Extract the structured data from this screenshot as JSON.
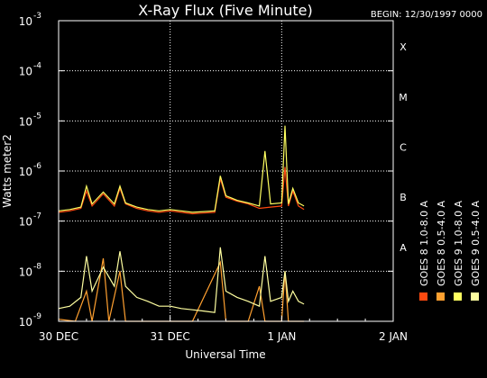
{
  "chart_data": {
    "type": "line",
    "title": "X-Ray Flux (Five Minute)",
    "begin_label": "BEGIN: 12/30/1997 0000",
    "xlabel": "Universal Time",
    "ylabel": "Watts meter2",
    "y_scale": "log",
    "ylim": [
      1e-09,
      0.001
    ],
    "xlim": [
      0,
      3
    ],
    "x_ticks": [
      {
        "value": 0,
        "label": "30 DEC"
      },
      {
        "value": 1,
        "label": "31 DEC"
      },
      {
        "value": 2,
        "label": "1 JAN"
      },
      {
        "value": 3,
        "label": "2 JAN"
      }
    ],
    "y_ticks": [
      {
        "value": 1e-09,
        "base": "10",
        "exp": "-9"
      },
      {
        "value": 1e-08,
        "base": "10",
        "exp": "-8"
      },
      {
        "value": 1e-07,
        "base": "10",
        "exp": "-7"
      },
      {
        "value": 1e-06,
        "base": "10",
        "exp": "-6"
      },
      {
        "value": 1e-05,
        "base": "10",
        "exp": "-5"
      },
      {
        "value": 0.0001,
        "base": "10",
        "exp": "-4"
      },
      {
        "value": 0.001,
        "base": "10",
        "exp": "-3"
      }
    ],
    "flare_classes": [
      {
        "label": "X",
        "value": 0.0003
      },
      {
        "label": "M",
        "value": 3e-05
      },
      {
        "label": "C",
        "value": 3e-06
      },
      {
        "label": "B",
        "value": 3e-07
      },
      {
        "label": "A",
        "value": 3e-08
      }
    ],
    "grid": true,
    "legend_position": "right, rotated vertical",
    "series": [
      {
        "name": "GOES 8 1.0-8.0 A",
        "color": "#ff4a10",
        "points": [
          [
            0.0,
            1.5e-07
          ],
          [
            0.1,
            1.6e-07
          ],
          [
            0.2,
            1.8e-07
          ],
          [
            0.25,
            4e-07
          ],
          [
            0.3,
            2e-07
          ],
          [
            0.4,
            3.5e-07
          ],
          [
            0.5,
            2e-07
          ],
          [
            0.55,
            4.5e-07
          ],
          [
            0.6,
            2.2e-07
          ],
          [
            0.7,
            1.8e-07
          ],
          [
            0.8,
            1.6e-07
          ],
          [
            0.9,
            1.5e-07
          ],
          [
            1.0,
            1.6e-07
          ],
          [
            1.1,
            1.5e-07
          ],
          [
            1.2,
            1.4e-07
          ],
          [
            1.3,
            1.45e-07
          ],
          [
            1.4,
            1.5e-07
          ],
          [
            1.45,
            7e-07
          ],
          [
            1.5,
            3e-07
          ],
          [
            1.6,
            2.5e-07
          ],
          [
            1.7,
            2.2e-07
          ],
          [
            1.8,
            1.8e-07
          ],
          [
            1.9,
            1.9e-07
          ],
          [
            2.0,
            2e-07
          ],
          [
            2.03,
            1.2e-06
          ],
          [
            2.06,
            2e-07
          ],
          [
            2.1,
            4e-07
          ],
          [
            2.15,
            2e-07
          ],
          [
            2.2,
            1.7e-07
          ]
        ]
      },
      {
        "name": "GOES 8 0.5-4.0 A",
        "color": "#ffa030",
        "points": [
          [
            0.0,
            1.1e-09
          ],
          [
            0.15,
            1e-09
          ],
          [
            0.25,
            4e-09
          ],
          [
            0.3,
            1e-09
          ],
          [
            0.4,
            1.8e-08
          ],
          [
            0.45,
            1e-09
          ],
          [
            0.55,
            1e-08
          ],
          [
            0.6,
            1e-09
          ],
          [
            0.8,
            1e-09
          ],
          [
            1.0,
            1e-09
          ],
          [
            1.2,
            1e-09
          ],
          [
            1.45,
            1.5e-08
          ],
          [
            1.5,
            1e-09
          ],
          [
            1.6,
            1e-09
          ],
          [
            1.7,
            1e-09
          ],
          [
            1.8,
            5e-09
          ],
          [
            1.85,
            1e-09
          ],
          [
            2.0,
            1e-09
          ],
          [
            2.03,
            1e-08
          ],
          [
            2.06,
            1e-09
          ],
          [
            2.2,
            1e-09
          ]
        ]
      },
      {
        "name": "GOES 9 1.0-8.0 A",
        "color": "#ffff60",
        "points": [
          [
            0.0,
            1.6e-07
          ],
          [
            0.1,
            1.7e-07
          ],
          [
            0.2,
            1.9e-07
          ],
          [
            0.25,
            5e-07
          ],
          [
            0.3,
            2.2e-07
          ],
          [
            0.4,
            3.8e-07
          ],
          [
            0.5,
            2.2e-07
          ],
          [
            0.55,
            5e-07
          ],
          [
            0.6,
            2.3e-07
          ],
          [
            0.7,
            1.9e-07
          ],
          [
            0.8,
            1.7e-07
          ],
          [
            0.9,
            1.6e-07
          ],
          [
            1.0,
            1.7e-07
          ],
          [
            1.1,
            1.6e-07
          ],
          [
            1.2,
            1.5e-07
          ],
          [
            1.3,
            1.55e-07
          ],
          [
            1.4,
            1.6e-07
          ],
          [
            1.45,
            8e-07
          ],
          [
            1.5,
            3.2e-07
          ],
          [
            1.6,
            2.6e-07
          ],
          [
            1.7,
            2.3e-07
          ],
          [
            1.8,
            2e-07
          ],
          [
            1.85,
            2.5e-06
          ],
          [
            1.9,
            2.2e-07
          ],
          [
            2.0,
            2.3e-07
          ],
          [
            2.03,
            8e-06
          ],
          [
            2.06,
            2.2e-07
          ],
          [
            2.1,
            4.5e-07
          ],
          [
            2.15,
            2.3e-07
          ],
          [
            2.2,
            2e-07
          ]
        ]
      },
      {
        "name": "GOES 9 0.5-4.0 A",
        "color": "#ffffa0",
        "points": [
          [
            0.0,
            1.8e-09
          ],
          [
            0.1,
            2e-09
          ],
          [
            0.2,
            3e-09
          ],
          [
            0.25,
            2e-08
          ],
          [
            0.3,
            4e-09
          ],
          [
            0.4,
            1.2e-08
          ],
          [
            0.5,
            5e-09
          ],
          [
            0.55,
            2.5e-08
          ],
          [
            0.6,
            5e-09
          ],
          [
            0.7,
            3e-09
          ],
          [
            0.8,
            2.5e-09
          ],
          [
            0.9,
            2e-09
          ],
          [
            1.0,
            2e-09
          ],
          [
            1.1,
            1.8e-09
          ],
          [
            1.2,
            1.7e-09
          ],
          [
            1.3,
            1.6e-09
          ],
          [
            1.4,
            1.5e-09
          ],
          [
            1.45,
            3e-08
          ],
          [
            1.5,
            4e-09
          ],
          [
            1.6,
            3e-09
          ],
          [
            1.7,
            2.5e-09
          ],
          [
            1.8,
            2e-09
          ],
          [
            1.85,
            2e-08
          ],
          [
            1.9,
            2.5e-09
          ],
          [
            2.0,
            3e-09
          ],
          [
            2.03,
            1e-08
          ],
          [
            2.06,
            2.5e-09
          ],
          [
            2.1,
            4e-09
          ],
          [
            2.15,
            2.5e-09
          ],
          [
            2.2,
            2.2e-09
          ]
        ]
      }
    ]
  }
}
